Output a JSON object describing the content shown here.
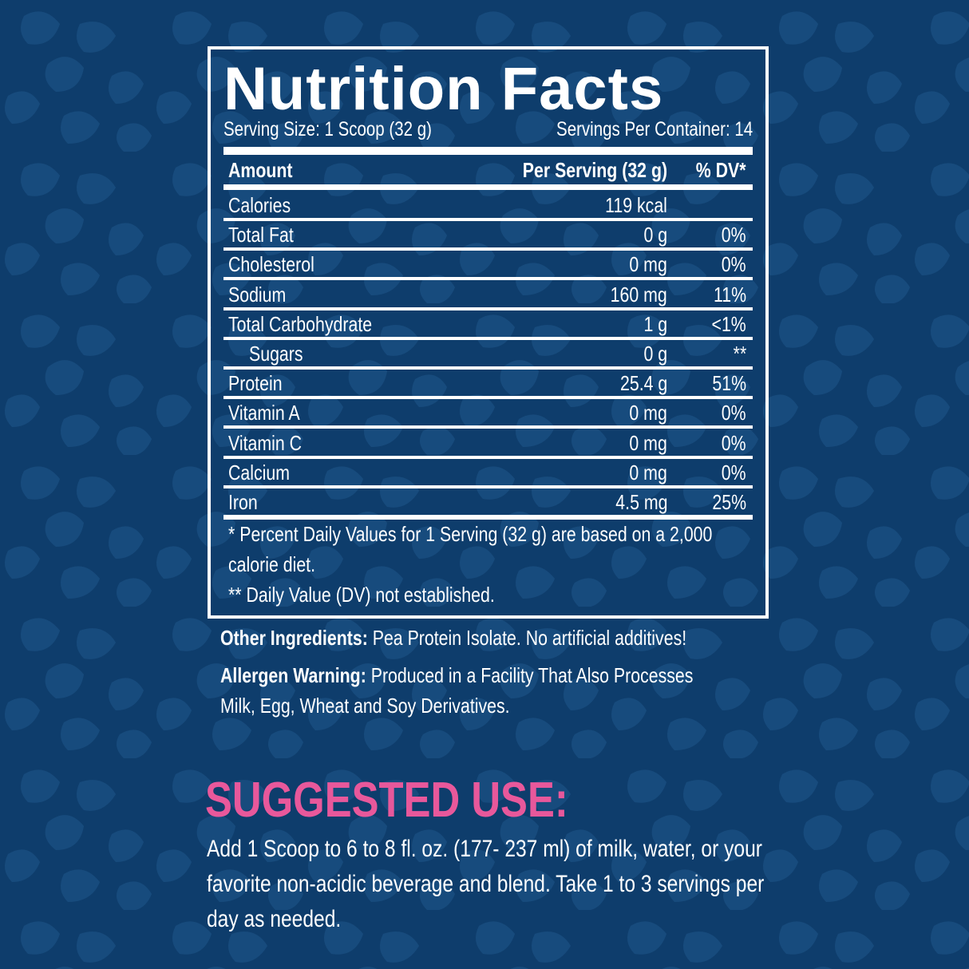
{
  "colors": {
    "background": "#0e3d6c",
    "pattern": "#174b7d",
    "text": "#ffffff",
    "accent": "#e8589b"
  },
  "label": {
    "title": "Nutrition Facts",
    "serving_size": "Serving Size: 1 Scoop (32 g)",
    "servings_per_container": "Servings Per Container: 14",
    "header": {
      "amount": "Amount",
      "per_serving": "Per Serving (32 g)",
      "dv": "% DV*"
    },
    "rows": [
      {
        "name": "Calories",
        "amount": "119 kcal",
        "dv": ""
      },
      {
        "name": "Total Fat",
        "amount": "0 g",
        "dv": "0%"
      },
      {
        "name": "Cholesterol",
        "amount": "0 mg",
        "dv": "0%"
      },
      {
        "name": "Sodium",
        "amount": "160 mg",
        "dv": "11%"
      },
      {
        "name": "Total Carbohydrate",
        "amount": "1 g",
        "dv": "<1%"
      },
      {
        "name": "Sugars",
        "amount": "0 g",
        "dv": "**"
      },
      {
        "name": "Protein",
        "amount": "25.4 g",
        "dv": "51%"
      },
      {
        "name": "Vitamin A",
        "amount": "0 mg",
        "dv": "0%"
      },
      {
        "name": "Vitamin C",
        "amount": "0 mg",
        "dv": "0%"
      },
      {
        "name": "Calcium",
        "amount": "0 mg",
        "dv": "0%"
      },
      {
        "name": "Iron",
        "amount": "4.5 mg",
        "dv": "25%"
      }
    ],
    "footnote1": "* Percent Daily Values for 1 Serving (32 g) are based on a 2,000 calorie diet.",
    "footnote2": "** Daily Value (DV) not established."
  },
  "other_ingredients": {
    "label": "Other Ingredients:",
    "text": " Pea Protein Isolate. No artificial additives!"
  },
  "allergen": {
    "label": "Allergen Warning:",
    "text": " Produced in a Facility That Also Processes Milk, Egg, Wheat and Soy Derivatives."
  },
  "suggested_use": {
    "title": "SUGGESTED USE:",
    "text": "Add 1 Scoop to 6 to 8 fl. oz. (177- 237 ml) of milk, water, or your favorite non-acidic beverage and blend. Take 1 to 3 servings per day as needed."
  }
}
